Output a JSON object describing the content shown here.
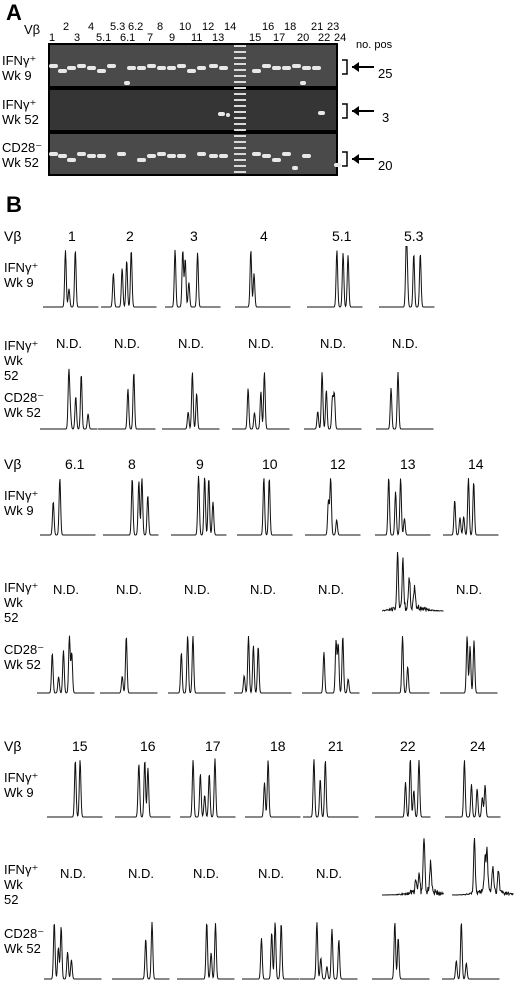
{
  "panel_a": {
    "letter": "A",
    "vb_label": "Vβ",
    "top_labels": [
      "2",
      "4",
      "5.3",
      "6.2",
      "8",
      "10",
      "12",
      "14",
      "16",
      "18",
      "21",
      "23"
    ],
    "bottom_labels": [
      "1",
      "3",
      "5.1",
      "6.1",
      "7",
      "9",
      "11",
      "13",
      "15",
      "17",
      "20",
      "22",
      "24"
    ],
    "no_pos_label": "no. pos",
    "rows": [
      {
        "label1": "IFNγ⁺",
        "label2": "Wk 9",
        "count": "25"
      },
      {
        "label1": "IFNγ⁺",
        "label2": "Wk 52",
        "count": "3"
      },
      {
        "label1": "CD28⁻",
        "label2": "Wk 52",
        "count": "20"
      }
    ]
  },
  "panel_b": {
    "letter": "B",
    "row_labels": {
      "ifn9": [
        "IFNγ⁺",
        "Wk 9"
      ],
      "ifn52": [
        "IFNγ⁺",
        "Wk 52"
      ],
      "cd28": [
        "CD28⁻",
        "Wk 52"
      ]
    },
    "vb_label": "Vβ",
    "nd": "N.D.",
    "groups": [
      {
        "columns": [
          "1",
          "2",
          "3",
          "4",
          "5.1",
          "5.3"
        ]
      },
      {
        "columns": [
          "6.1",
          "8",
          "9",
          "10",
          "12",
          "13",
          "14"
        ]
      },
      {
        "columns": [
          "15",
          "16",
          "17",
          "18",
          "21",
          "22",
          "24"
        ]
      }
    ]
  }
}
